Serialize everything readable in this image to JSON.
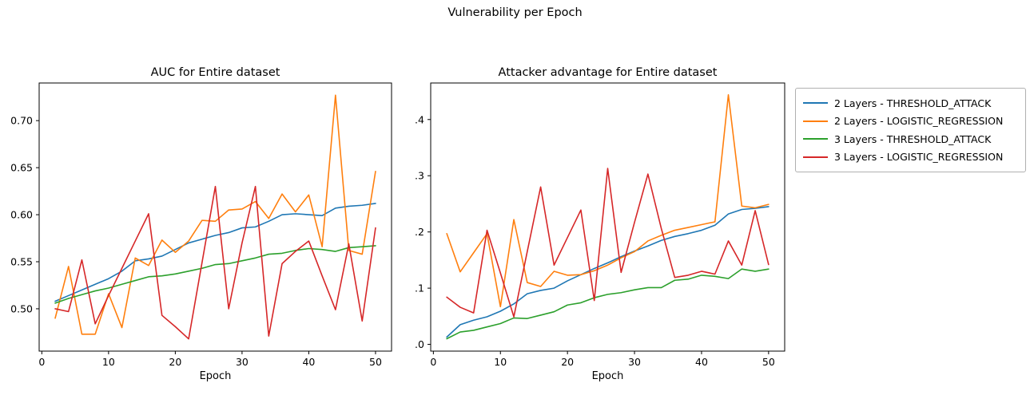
{
  "figure": {
    "suptitle": "Vulnerability per Epoch",
    "background": "#ffffff",
    "text_color": "#000000"
  },
  "legend": {
    "location": "outside upper right",
    "items": [
      {
        "label": "2 Layers - THRESHOLD_ATTACK",
        "color": "#1f77b4"
      },
      {
        "label": "2 Layers - LOGISTIC_REGRESSION",
        "color": "#ff7f0e"
      },
      {
        "label": "3 Layers - THRESHOLD_ATTACK",
        "color": "#2ca02c"
      },
      {
        "label": "3 Layers - LOGISTIC_REGRESSION",
        "color": "#d62728"
      }
    ]
  },
  "chart_data": [
    {
      "type": "line",
      "title": "AUC for Entire dataset",
      "xlabel": "Epoch",
      "ylabel": "",
      "grid": false,
      "x": [
        2,
        4,
        6,
        8,
        10,
        12,
        14,
        16,
        18,
        20,
        22,
        24,
        26,
        28,
        30,
        32,
        34,
        36,
        38,
        40,
        42,
        44,
        46,
        48,
        50
      ],
      "xlim": [
        -0.4,
        52.4
      ],
      "ylim": [
        0.455,
        0.74
      ],
      "xticks": [
        0,
        10,
        20,
        30,
        40,
        50
      ],
      "xtick_labels": [
        "0",
        "10",
        "20",
        "30",
        "40",
        "50"
      ],
      "yticks": [
        0.5,
        0.55,
        0.6,
        0.65,
        0.7
      ],
      "ytick_labels": [
        "0.50",
        "0.55",
        "0.60",
        "0.65",
        "0.70"
      ],
      "series": [
        {
          "name": "2 Layers - THRESHOLD_ATTACK",
          "color": "#1f77b4",
          "values": [
            0.508,
            0.514,
            0.52,
            0.526,
            0.532,
            0.54,
            0.551,
            0.553,
            0.556,
            0.563,
            0.57,
            0.574,
            0.578,
            0.581,
            0.586,
            0.587,
            0.593,
            0.6,
            0.601,
            0.6,
            0.599,
            0.607,
            0.609,
            0.61,
            0.612
          ]
        },
        {
          "name": "2 Layers - LOGISTIC_REGRESSION",
          "color": "#ff7f0e",
          "values": [
            0.49,
            0.545,
            0.473,
            0.473,
            0.516,
            0.48,
            0.554,
            0.546,
            0.573,
            0.56,
            0.572,
            0.594,
            0.593,
            0.605,
            0.606,
            0.614,
            0.596,
            0.622,
            0.603,
            0.621,
            0.566,
            0.727,
            0.562,
            0.558,
            0.646
          ]
        },
        {
          "name": "3 Layers - THRESHOLD_ATTACK",
          "color": "#2ca02c",
          "values": [
            0.506,
            0.511,
            0.515,
            0.519,
            0.522,
            0.526,
            0.53,
            0.534,
            0.535,
            0.537,
            0.54,
            0.543,
            0.547,
            0.548,
            0.551,
            0.554,
            0.558,
            0.559,
            0.562,
            0.564,
            0.563,
            0.561,
            0.565,
            0.566,
            0.567
          ]
        },
        {
          "name": "3 Layers - LOGISTIC_REGRESSION",
          "color": "#d62728",
          "values": [
            0.5,
            0.497,
            0.552,
            0.484,
            0.514,
            0.543,
            0.572,
            0.601,
            0.493,
            0.481,
            0.468,
            0.549,
            0.63,
            0.5,
            0.57,
            0.63,
            0.471,
            0.548,
            0.561,
            0.572,
            0.535,
            0.499,
            0.569,
            0.487,
            0.586
          ]
        }
      ]
    },
    {
      "type": "line",
      "title": "Attacker advantage for Entire dataset",
      "xlabel": "Epoch",
      "ylabel": "",
      "grid": false,
      "x": [
        2,
        4,
        6,
        8,
        10,
        12,
        14,
        16,
        18,
        20,
        22,
        24,
        26,
        28,
        30,
        32,
        34,
        36,
        38,
        40,
        42,
        44,
        46,
        48,
        50
      ],
      "xlim": [
        -0.4,
        52.4
      ],
      "ylim": [
        -0.012,
        0.465
      ],
      "xticks": [
        0,
        10,
        20,
        30,
        40,
        50
      ],
      "xtick_labels": [
        "0",
        "10",
        "20",
        "30",
        "40",
        "50"
      ],
      "yticks": [
        0.0,
        0.1,
        0.2,
        0.3,
        0.4
      ],
      "ytick_labels": [
        "0.0",
        "0.1",
        "0.2",
        "0.3",
        "0.4"
      ],
      "series": [
        {
          "name": "2 Layers - THRESHOLD_ATTACK",
          "color": "#1f77b4",
          "values": [
            0.013,
            0.035,
            0.043,
            0.049,
            0.059,
            0.072,
            0.09,
            0.096,
            0.1,
            0.113,
            0.124,
            0.135,
            0.145,
            0.156,
            0.166,
            0.175,
            0.185,
            0.192,
            0.197,
            0.203,
            0.212,
            0.232,
            0.24,
            0.242,
            0.245
          ]
        },
        {
          "name": "2 Layers - LOGISTIC_REGRESSION",
          "color": "#ff7f0e",
          "values": [
            0.197,
            0.129,
            0.163,
            0.197,
            0.067,
            0.222,
            0.11,
            0.103,
            0.13,
            0.123,
            0.124,
            0.131,
            0.141,
            0.154,
            0.165,
            0.184,
            0.194,
            0.203,
            0.208,
            0.213,
            0.218,
            0.444,
            0.246,
            0.243,
            0.249
          ]
        },
        {
          "name": "3 Layers - THRESHOLD_ATTACK",
          "color": "#2ca02c",
          "values": [
            0.01,
            0.022,
            0.025,
            0.031,
            0.037,
            0.047,
            0.046,
            0.052,
            0.058,
            0.07,
            0.074,
            0.083,
            0.089,
            0.092,
            0.097,
            0.101,
            0.101,
            0.114,
            0.116,
            0.123,
            0.121,
            0.117,
            0.134,
            0.13,
            0.134
          ]
        },
        {
          "name": "3 Layers - LOGISTIC_REGRESSION",
          "color": "#d62728",
          "values": [
            0.084,
            0.066,
            0.056,
            0.203,
            0.127,
            0.049,
            0.165,
            0.28,
            0.141,
            0.19,
            0.239,
            0.078,
            0.313,
            0.128,
            0.217,
            0.303,
            0.206,
            0.119,
            0.123,
            0.13,
            0.125,
            0.184,
            0.141,
            0.238,
            0.142
          ]
        }
      ]
    }
  ]
}
